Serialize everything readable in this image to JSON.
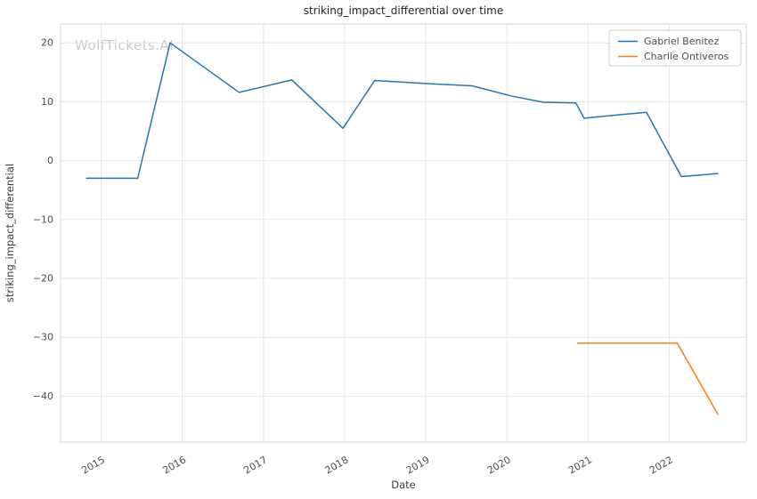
{
  "watermark": "WolfTickets.AI",
  "chart_data": {
    "type": "line",
    "title": "striking_impact_differential over time",
    "xlabel": "Date",
    "ylabel": "striking_impact_differential",
    "xlim": [
      2014.5,
      2022.95
    ],
    "ylim": [
      -47.8,
      23.2
    ],
    "xticks": [
      2015,
      2016,
      2017,
      2018,
      2019,
      2020,
      2021,
      2022
    ],
    "yticks": [
      20,
      10,
      0,
      -10,
      -20,
      -30,
      -40
    ],
    "grid": true,
    "legend_position": "upper right",
    "series": [
      {
        "name": "Gabriel Benitez",
        "color": "#1f77b4",
        "x": [
          2014.82,
          2015.45,
          2015.85,
          2016.7,
          2017.35,
          2017.98,
          2018.37,
          2019.0,
          2019.57,
          2020.05,
          2020.45,
          2020.85,
          2020.95,
          2021.4,
          2021.72,
          2022.15,
          2022.6
        ],
        "y": [
          -3.0,
          -3.0,
          20.0,
          11.6,
          13.7,
          5.5,
          13.6,
          13.1,
          12.7,
          11.0,
          9.9,
          9.8,
          7.2,
          7.8,
          8.2,
          -2.7,
          -2.2
        ]
      },
      {
        "name": "Charlie Ontiveros",
        "color": "#ff7f0e",
        "x": [
          2020.87,
          2022.1,
          2022.6
        ],
        "y": [
          -31.0,
          -31.0,
          -43.1
        ]
      }
    ]
  }
}
